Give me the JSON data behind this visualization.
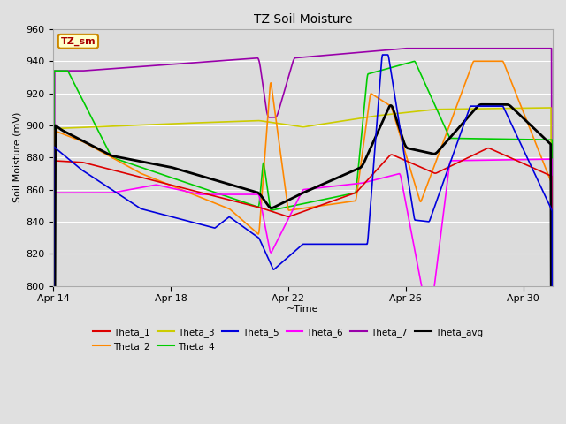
{
  "title": "TZ Soil Moisture",
  "xlabel": "~Time",
  "ylabel": "Soil Moisture (mV)",
  "ylim": [
    800,
    960
  ],
  "yticks": [
    800,
    820,
    840,
    860,
    880,
    900,
    920,
    940,
    960
  ],
  "background_color": "#e0e0e0",
  "plot_bg_color": "#dcdcdc",
  "grid_color": "#ffffff",
  "series": {
    "Theta_1": {
      "color": "#dd0000",
      "lw": 1.2
    },
    "Theta_2": {
      "color": "#ff8800",
      "lw": 1.2
    },
    "Theta_3": {
      "color": "#cccc00",
      "lw": 1.2
    },
    "Theta_4": {
      "color": "#00cc00",
      "lw": 1.2
    },
    "Theta_5": {
      "color": "#0000dd",
      "lw": 1.2
    },
    "Theta_6": {
      "color": "#ff00ff",
      "lw": 1.2
    },
    "Theta_7": {
      "color": "#9900aa",
      "lw": 1.2
    },
    "Theta_avg": {
      "color": "#000000",
      "lw": 2.0
    }
  },
  "legend_box": {
    "text": "TZ_sm",
    "facecolor": "#ffffcc",
    "edgecolor": "#cc8800",
    "textcolor": "#aa0000"
  },
  "xtick_labels": [
    "Apr 14",
    "Apr 18",
    "Apr 22",
    "Apr 26",
    "Apr 30"
  ],
  "xtick_positions": [
    0,
    4,
    8,
    12,
    16
  ]
}
